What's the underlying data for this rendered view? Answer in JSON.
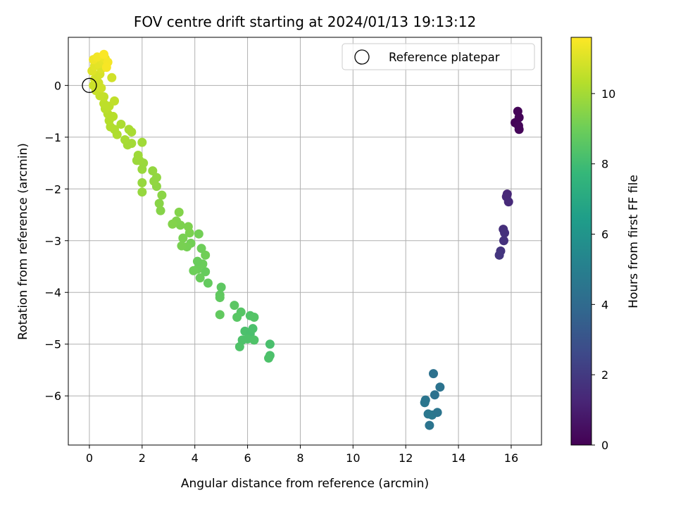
{
  "chart_data": {
    "type": "scatter",
    "title": "FOV centre drift starting at 2024/01/13 19:13:12",
    "xlabel": "Angular distance from reference (arcmin)",
    "ylabel": "Rotation from reference (arcmin)",
    "xlim": [
      -0.8,
      17.15
    ],
    "ylim": [
      -6.95,
      0.93
    ],
    "xticks": [
      0,
      2,
      4,
      6,
      8,
      10,
      12,
      14,
      16
    ],
    "yticks": [
      0,
      -1,
      -2,
      -3,
      -4,
      -5,
      -6
    ],
    "grid": true,
    "legend": {
      "location": "top-right",
      "entries": [
        "Reference platepar"
      ]
    },
    "reference_point": {
      "x": 0,
      "y": 0,
      "marker": "open-circle"
    },
    "colorbar": {
      "label": "Hours from first FF file",
      "range": [
        0,
        11.6
      ],
      "ticks": [
        0,
        2,
        4,
        6,
        8,
        10
      ],
      "colormap": "viridis"
    },
    "points": [
      [
        16.15,
        -0.72,
        0.1
      ],
      [
        16.25,
        -0.5,
        0.12
      ],
      [
        16.3,
        -0.62,
        0.15
      ],
      [
        16.3,
        -0.85,
        0.18
      ],
      [
        16.28,
        -0.78,
        0.2
      ],
      [
        15.85,
        -2.1,
        1.3
      ],
      [
        15.82,
        -2.15,
        1.35
      ],
      [
        15.9,
        -2.25,
        1.4
      ],
      [
        15.7,
        -2.78,
        1.6
      ],
      [
        15.75,
        -2.85,
        1.65
      ],
      [
        15.72,
        -3.0,
        1.7
      ],
      [
        15.6,
        -3.2,
        1.8
      ],
      [
        15.55,
        -3.28,
        1.85
      ],
      [
        13.05,
        -5.57,
        4.3
      ],
      [
        13.3,
        -5.83,
        4.4
      ],
      [
        13.1,
        -5.98,
        4.35
      ],
      [
        12.75,
        -6.08,
        4.5
      ],
      [
        12.72,
        -6.13,
        4.55
      ],
      [
        12.85,
        -6.35,
        4.6
      ],
      [
        13.0,
        -6.37,
        4.65
      ],
      [
        13.2,
        -6.32,
        4.5
      ],
      [
        12.9,
        -6.57,
        4.45
      ],
      [
        6.85,
        -5.0,
        8.2
      ],
      [
        6.85,
        -5.22,
        8.25
      ],
      [
        6.8,
        -5.27,
        8.3
      ],
      [
        5.7,
        -5.05,
        8.35
      ],
      [
        5.8,
        -4.92,
        8.3
      ],
      [
        5.9,
        -4.75,
        8.25
      ],
      [
        6.1,
        -4.8,
        8.2
      ],
      [
        6.2,
        -4.7,
        8.25
      ],
      [
        6.0,
        -4.9,
        8.3
      ],
      [
        6.25,
        -4.92,
        8.35
      ],
      [
        6.1,
        -4.45,
        8.4
      ],
      [
        6.25,
        -4.48,
        8.45
      ],
      [
        5.75,
        -4.38,
        8.5
      ],
      [
        5.6,
        -4.48,
        8.55
      ],
      [
        5.5,
        -4.25,
        8.6
      ],
      [
        5.0,
        -3.9,
        8.65
      ],
      [
        4.95,
        -4.05,
        8.7
      ],
      [
        4.95,
        -4.1,
        8.72
      ],
      [
        4.95,
        -4.43,
        8.75
      ],
      [
        4.5,
        -3.82,
        8.8
      ],
      [
        4.4,
        -3.6,
        8.85
      ],
      [
        4.2,
        -3.72,
        8.9
      ],
      [
        4.1,
        -3.55,
        8.95
      ],
      [
        3.95,
        -3.58,
        9.0
      ],
      [
        4.3,
        -3.45,
        8.95
      ],
      [
        4.1,
        -3.4,
        8.92
      ],
      [
        4.25,
        -3.15,
        9.0
      ],
      [
        4.4,
        -3.28,
        9.05
      ],
      [
        4.15,
        -2.87,
        9.1
      ],
      [
        3.85,
        -3.05,
        9.1
      ],
      [
        3.7,
        -3.12,
        9.15
      ],
      [
        3.5,
        -3.1,
        9.2
      ],
      [
        3.55,
        -2.95,
        9.2
      ],
      [
        3.8,
        -2.85,
        9.25
      ],
      [
        3.75,
        -2.73,
        9.3
      ],
      [
        3.45,
        -2.7,
        9.3
      ],
      [
        3.3,
        -2.62,
        9.35
      ],
      [
        3.15,
        -2.68,
        9.4
      ],
      [
        3.4,
        -2.45,
        9.4
      ],
      [
        2.7,
        -2.42,
        9.45
      ],
      [
        2.65,
        -2.28,
        9.5
      ],
      [
        2.75,
        -2.12,
        9.55
      ],
      [
        2.55,
        -1.95,
        9.6
      ],
      [
        2.45,
        -1.85,
        9.65
      ],
      [
        2.55,
        -1.78,
        9.65
      ],
      [
        2.4,
        -1.65,
        9.7
      ],
      [
        2.0,
        -2.06,
        9.75
      ],
      [
        2.0,
        -1.88,
        9.75
      ],
      [
        2.0,
        -1.62,
        9.8
      ],
      [
        2.05,
        -1.5,
        9.8
      ],
      [
        1.9,
        -1.45,
        9.85
      ],
      [
        1.8,
        -1.45,
        9.85
      ],
      [
        1.85,
        -1.35,
        9.9
      ],
      [
        2.0,
        -1.1,
        9.95
      ],
      [
        1.6,
        -1.12,
        10.0
      ],
      [
        1.45,
        -1.15,
        10.0
      ],
      [
        1.35,
        -1.05,
        10.05
      ],
      [
        1.6,
        -0.9,
        10.1
      ],
      [
        1.5,
        -0.85,
        10.1
      ],
      [
        1.2,
        -0.75,
        10.15
      ],
      [
        1.05,
        -0.95,
        10.2
      ],
      [
        0.95,
        -0.85,
        10.2
      ],
      [
        0.8,
        -0.8,
        10.25
      ],
      [
        0.75,
        -0.68,
        10.3
      ],
      [
        0.9,
        -0.6,
        10.35
      ],
      [
        0.7,
        -0.55,
        10.35
      ],
      [
        0.6,
        -0.45,
        10.4
      ],
      [
        0.55,
        -0.35,
        10.45
      ],
      [
        0.75,
        -0.4,
        10.45
      ],
      [
        0.95,
        -0.3,
        10.5
      ],
      [
        0.55,
        -0.22,
        10.55
      ],
      [
        0.4,
        -0.2,
        10.6
      ],
      [
        0.25,
        -0.1,
        10.65
      ],
      [
        0.15,
        0.0,
        10.7
      ],
      [
        0.35,
        0.05,
        10.75
      ],
      [
        0.45,
        -0.05,
        10.75
      ],
      [
        0.2,
        0.12,
        10.8
      ],
      [
        0.3,
        0.18,
        10.85
      ],
      [
        0.4,
        0.22,
        10.9
      ],
      [
        0.45,
        0.32,
        11.0
      ],
      [
        0.1,
        0.28,
        11.05
      ],
      [
        0.2,
        0.38,
        11.1
      ],
      [
        0.35,
        0.42,
        11.15
      ],
      [
        0.5,
        0.48,
        11.2
      ],
      [
        0.6,
        0.52,
        11.3
      ],
      [
        0.15,
        0.5,
        11.35
      ],
      [
        0.3,
        0.55,
        11.4
      ],
      [
        0.7,
        0.45,
        11.45
      ],
      [
        0.65,
        0.35,
        11.5
      ],
      [
        0.55,
        0.6,
        11.55
      ],
      [
        0.85,
        0.15,
        10.8
      ]
    ]
  }
}
